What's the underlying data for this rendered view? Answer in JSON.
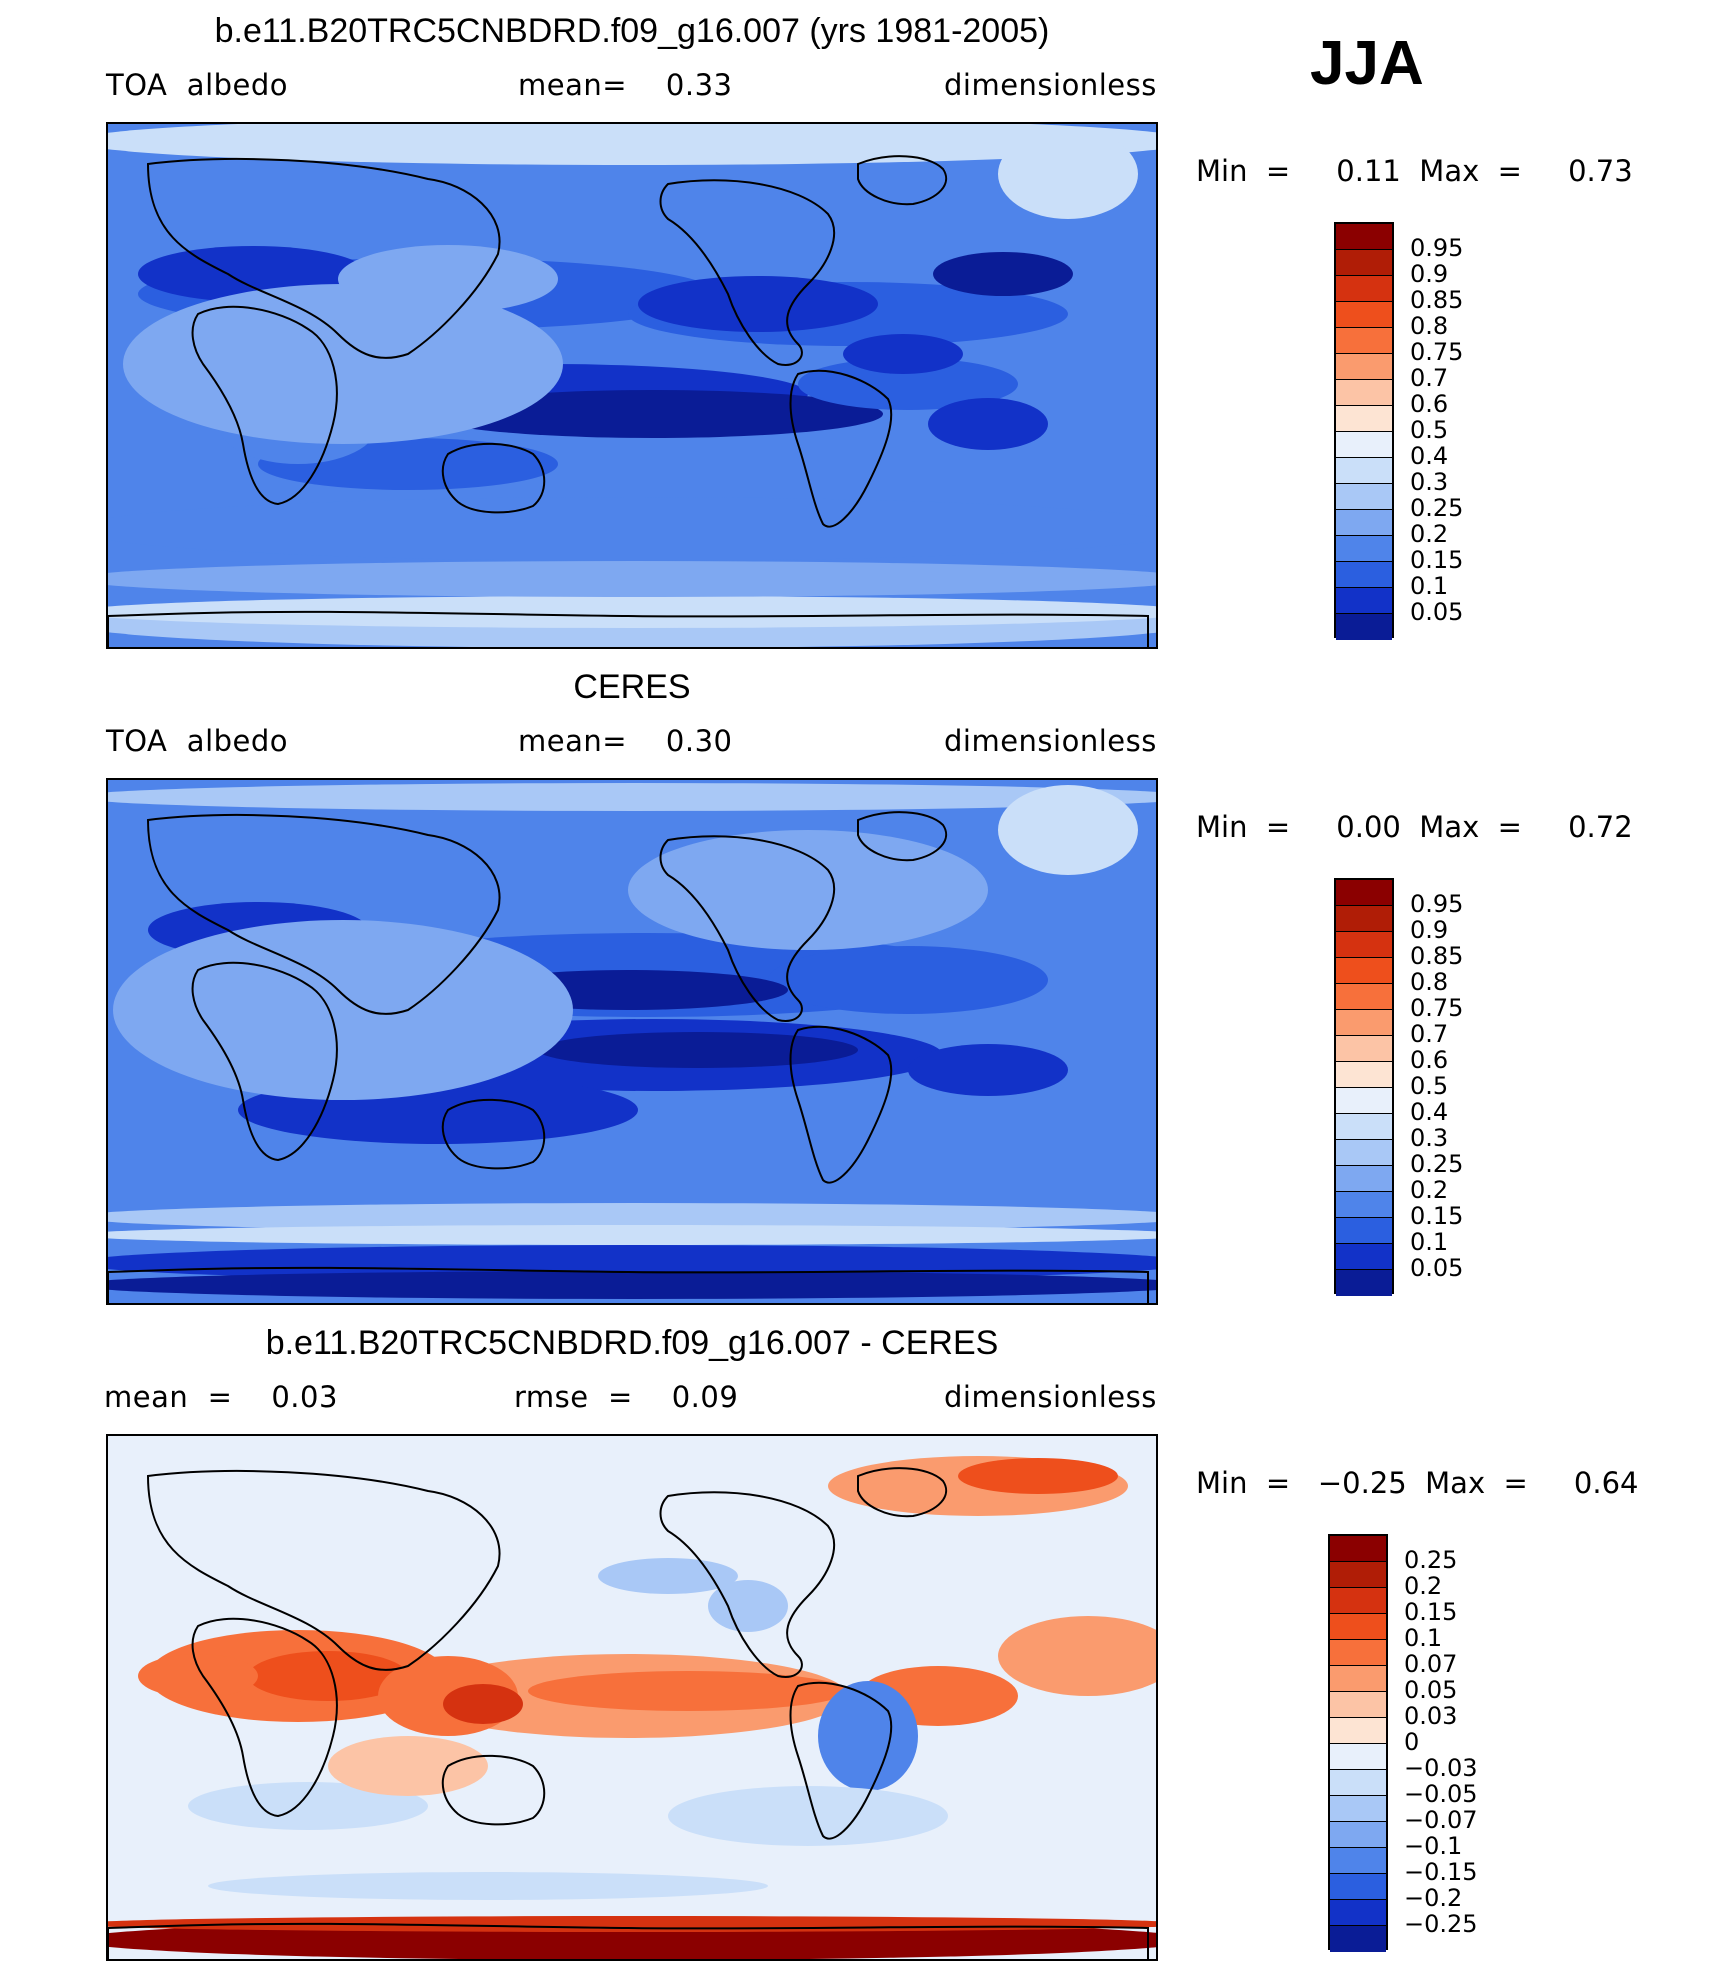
{
  "season": "JJA",
  "land_outline_color": "#000000",
  "panels": [
    {
      "title": "b.e11.B20TRC5CNBDRD.f09_g16.007 (yrs 1981-2005)",
      "left_label": "TOA  albedo",
      "mid_label": "mean=    0.33",
      "right_label": "dimensionless",
      "minmax": "Min  =     0.11  Max  =     0.73",
      "colorbar": {
        "labels": [
          "0.95",
          "0.9",
          "0.85",
          "0.8",
          "0.75",
          "0.7",
          "0.6",
          "0.5",
          "0.4",
          "0.3",
          "0.25",
          "0.2",
          "0.15",
          "0.1",
          "0.05"
        ],
        "colors": [
          "#8b0000",
          "#b01d06",
          "#d53210",
          "#ee4f1c",
          "#f7703b",
          "#fa9b6e",
          "#fcc4a6",
          "#fde4d3",
          "#e8f0fb",
          "#cadff9",
          "#a9c8f6",
          "#7ea8f1",
          "#4f84ea",
          "#2b5fe0",
          "#1232c8",
          "#0a1c96"
        ]
      },
      "field": "model"
    },
    {
      "title": "CERES",
      "left_label": "TOA  albedo",
      "mid_label": "mean=    0.30",
      "right_label": "dimensionless",
      "minmax": "Min  =     0.00  Max  =     0.72",
      "colorbar": {
        "labels": [
          "0.95",
          "0.9",
          "0.85",
          "0.8",
          "0.75",
          "0.7",
          "0.6",
          "0.5",
          "0.4",
          "0.3",
          "0.25",
          "0.2",
          "0.15",
          "0.1",
          "0.05"
        ],
        "colors": [
          "#8b0000",
          "#b01d06",
          "#d53210",
          "#ee4f1c",
          "#f7703b",
          "#fa9b6e",
          "#fcc4a6",
          "#fde4d3",
          "#e8f0fb",
          "#cadff9",
          "#a9c8f6",
          "#7ea8f1",
          "#4f84ea",
          "#2b5fe0",
          "#1232c8",
          "#0a1c96"
        ]
      },
      "field": "obs"
    },
    {
      "title": "b.e11.B20TRC5CNBDRD.f09_g16.007 - CERES",
      "left_label": "mean  =    0.03",
      "mid_label": "rmse  =    0.09",
      "right_label": "dimensionless",
      "minmax": "Min  =   −0.25  Max  =     0.64",
      "colorbar": {
        "labels": [
          "0.25",
          "0.2",
          "0.15",
          "0.1",
          "0.07",
          "0.05",
          "0.03",
          "0",
          "−0.03",
          "−0.05",
          "−0.07",
          "−0.1",
          "−0.15",
          "−0.2",
          "−0.25"
        ],
        "colors": [
          "#8b0000",
          "#b01d06",
          "#d53210",
          "#ee4f1c",
          "#f7703b",
          "#fa9b6e",
          "#fcc4a6",
          "#fde4d3",
          "#e8f0fb",
          "#cadff9",
          "#a9c8f6",
          "#7ea8f1",
          "#4f84ea",
          "#2b5fe0",
          "#1232c8",
          "#0a1c96"
        ]
      },
      "field": "diff"
    }
  ]
}
